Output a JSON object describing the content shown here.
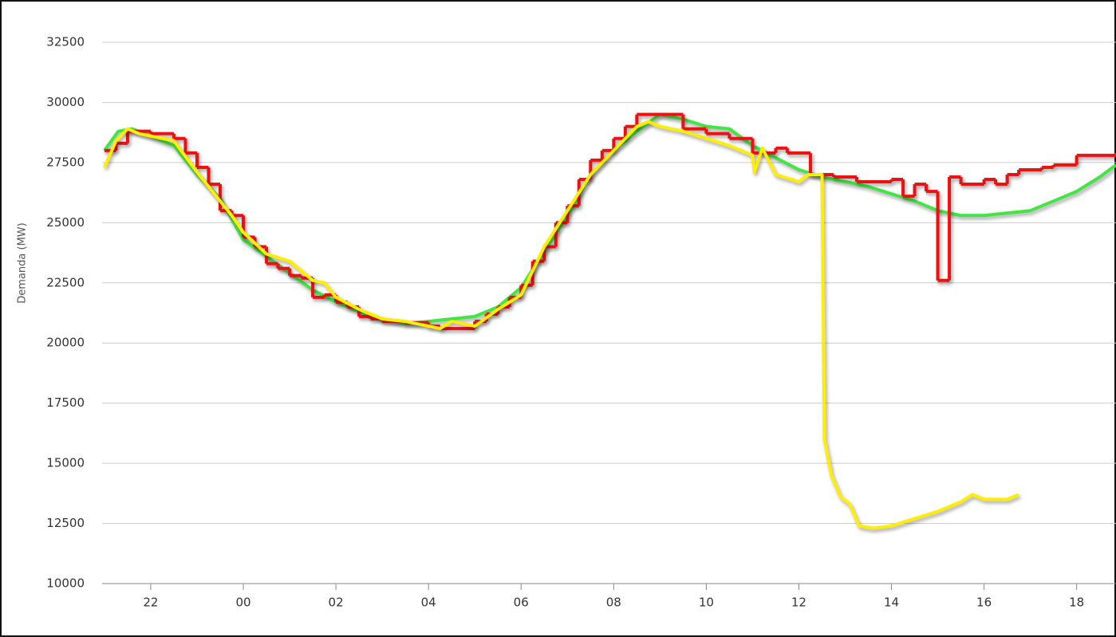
{
  "chart_data": {
    "type": "line",
    "y_label": "Demanda (MW)",
    "xlim": [
      20.95,
      42.85
    ],
    "xticks": [
      22,
      {
        "value": 24,
        "label": "00"
      },
      {
        "value": 26,
        "label": "02"
      },
      {
        "value": 28,
        "label": "04"
      },
      {
        "value": 30,
        "label": "06"
      },
      {
        "value": 32,
        "label": "08"
      },
      {
        "value": 34,
        "label": "10"
      },
      {
        "value": 36,
        "label": "12"
      },
      {
        "value": 38,
        "label": "14"
      },
      {
        "value": 40,
        "label": "16"
      },
      {
        "value": 42,
        "label": "18"
      }
    ],
    "ylim": [
      10000,
      32500
    ],
    "yticks": [
      10000,
      12500,
      15000,
      17500,
      20000,
      22500,
      25000,
      27500,
      30000,
      32500
    ],
    "grid": true,
    "series": [
      {
        "color": "#44e444",
        "step": false,
        "x": [
          21.0,
          21.3,
          21.6,
          22,
          22.5,
          23,
          23.5,
          24,
          24.5,
          25,
          25.5,
          26,
          26.5,
          27,
          27.5,
          28,
          28.5,
          29,
          29.5,
          30,
          30.5,
          31,
          31.5,
          32,
          32.5,
          33,
          33.5,
          34,
          34.5,
          35,
          35.5,
          36,
          36.5,
          37,
          37.5,
          38,
          38.5,
          39,
          39.5,
          40,
          40.5,
          41,
          41.5,
          42,
          42.5,
          42.85
        ],
        "values": [
          28000,
          28800,
          28900,
          28600,
          28200,
          27000,
          26000,
          24300,
          23600,
          22900,
          22200,
          21700,
          21300,
          21000,
          20800,
          20900,
          21000,
          21100,
          21500,
          22300,
          23800,
          25300,
          27000,
          28000,
          28800,
          29500,
          29300,
          29000,
          28900,
          28200,
          27700,
          27200,
          26900,
          26700,
          26500,
          26200,
          25900,
          25500,
          25300,
          25300,
          25400,
          25500,
          25900,
          26300,
          26900,
          27400
        ]
      },
      {
        "color": "#ee1111",
        "step": true,
        "x": [
          21.0,
          21.25,
          21.5,
          22,
          22.5,
          22.75,
          23,
          23.25,
          23.5,
          23.75,
          24,
          24.25,
          24.5,
          24.75,
          25,
          25.25,
          25.5,
          25.75,
          26,
          26.25,
          26.5,
          26.75,
          27,
          27.5,
          28,
          28.25,
          29,
          29.25,
          29.5,
          29.75,
          30,
          30.25,
          30.5,
          30.75,
          31,
          31.25,
          31.5,
          31.75,
          32,
          32.25,
          32.5,
          33.5,
          34,
          34.5,
          35,
          35.5,
          35.75,
          36.25,
          36.75,
          37.25,
          38,
          38.25,
          38.5,
          38.75,
          39.0,
          39.25,
          39.5,
          40,
          40.25,
          40.5,
          40.75,
          41.25,
          41.5,
          42,
          42.85
        ],
        "values": [
          28000,
          28300,
          28800,
          28700,
          28500,
          27900,
          27300,
          26600,
          25500,
          25300,
          24400,
          24000,
          23300,
          23100,
          22800,
          22700,
          21900,
          22000,
          21700,
          21500,
          21100,
          21000,
          20900,
          20850,
          20700,
          20600,
          20900,
          21200,
          21500,
          21900,
          22400,
          23400,
          24000,
          25000,
          25700,
          26800,
          27600,
          28000,
          28500,
          29000,
          29500,
          28900,
          28700,
          28500,
          27900,
          28100,
          27900,
          27000,
          26900,
          26700,
          26800,
          26100,
          26600,
          26300,
          22600,
          26900,
          26600,
          26800,
          26600,
          27000,
          27200,
          27300,
          27400,
          27800,
          27900
        ]
      },
      {
        "color": "#ffee00",
        "step": false,
        "x": [
          21.0,
          21.25,
          21.5,
          21.75,
          22,
          22.5,
          23,
          23.5,
          23.75,
          24,
          24.5,
          25,
          25.25,
          25.5,
          25.75,
          26,
          26.5,
          27,
          27.5,
          28,
          28.25,
          28.5,
          29,
          29.5,
          30,
          30.5,
          31,
          31.5,
          32,
          32.5,
          32.75,
          33,
          33.5,
          34,
          34.5,
          35,
          35.04,
          35.21,
          35.5,
          36,
          36.2,
          36.5,
          36.55,
          36.7,
          36.9,
          37.1,
          37.3,
          37.6,
          38,
          38.5,
          39,
          39.5,
          39.75,
          40,
          40.5,
          40.75
        ],
        "values": [
          27300,
          28400,
          28900,
          28700,
          28600,
          28400,
          27100,
          25900,
          25300,
          24600,
          23700,
          23400,
          23000,
          22600,
          22500,
          21900,
          21400,
          21000,
          20900,
          20700,
          20600,
          20900,
          20700,
          21400,
          22000,
          24000,
          25500,
          27000,
          28000,
          29000,
          29200,
          29000,
          28800,
          28500,
          28200,
          27800,
          27100,
          28100,
          27000,
          26700,
          27000,
          27000,
          16000,
          14500,
          13600,
          13300,
          12400,
          12300,
          12400,
          12700,
          13000,
          13400,
          13700,
          13500,
          13500,
          13700
        ]
      }
    ]
  }
}
